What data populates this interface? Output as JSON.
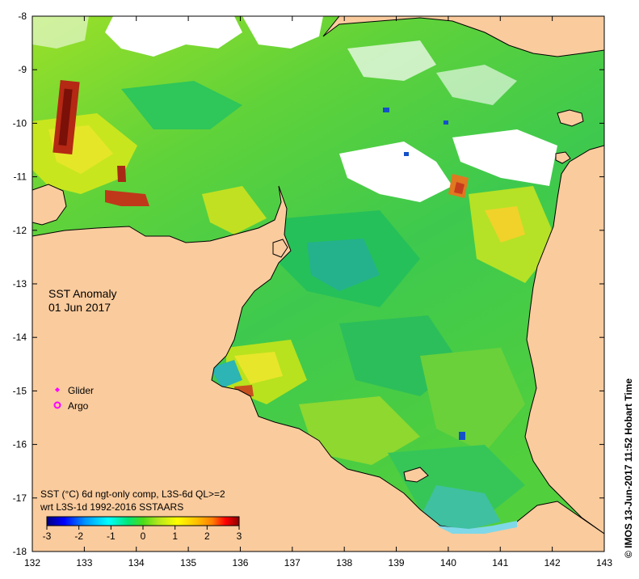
{
  "map": {
    "title_line1": "SST Anomaly",
    "title_line2": "01 Jun 2017",
    "x_ticks": [
      "132",
      "133",
      "134",
      "135",
      "136",
      "137",
      "138",
      "139",
      "140",
      "141",
      "142",
      "143"
    ],
    "y_ticks": [
      "-8",
      "-9",
      "-10",
      "-11",
      "-12",
      "-13",
      "-14",
      "-15",
      "-16",
      "-17",
      "-18"
    ],
    "lon_range": [
      132,
      143
    ],
    "lat_range": [
      -18,
      -8
    ],
    "land_color": "#FACB9D",
    "legend": {
      "glider_label": "Glider",
      "argo_label": "Argo",
      "marker_color": "#FF00FF"
    },
    "product_line1": "SST (°C) 6d ngt-only comp, L3S-6d QL>=2",
    "product_line2": "wrt L3S-1d 1992-2016 SSTAARS",
    "colorbar": {
      "ticks": [
        "-3",
        "-2",
        "-1",
        "0",
        "1",
        "2",
        "3"
      ],
      "range": [
        -3,
        3
      ],
      "colors": [
        "#000080",
        "#0000FF",
        "#0096FF",
        "#00FFFF",
        "#00E67A",
        "#4CDB1A",
        "#B4E61E",
        "#FFFF00",
        "#FFC000",
        "#FF7F00",
        "#FF0000",
        "#8B0000"
      ]
    },
    "credit": "© IMOS 13-Jun-2017 11:52 Hobart Time"
  }
}
